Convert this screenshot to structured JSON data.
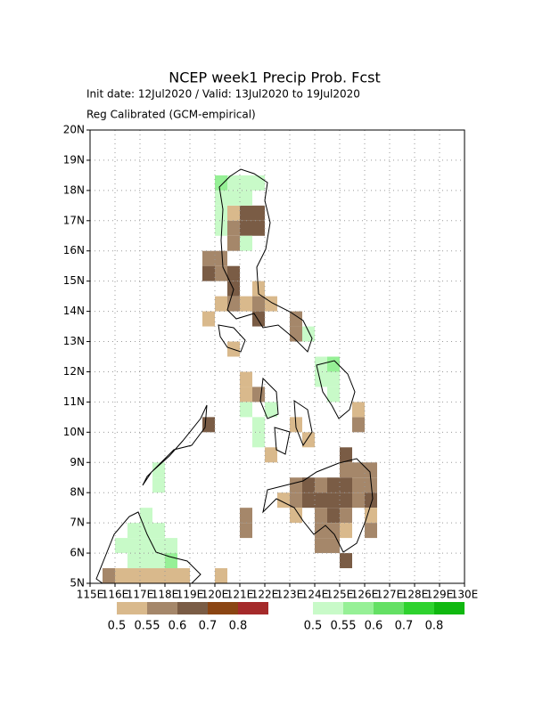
{
  "chart_data": {
    "type": "map",
    "title": "NCEP week1 Precip Prob. Fcst",
    "subtitle": "Init date: 12Jul2020 / Valid: 13Jul2020 to 19Jul2020",
    "note": "Reg Calibrated (GCM-empirical)",
    "xlim": [
      115,
      130
    ],
    "ylim": [
      5,
      20
    ],
    "xticks": [
      {
        "value": 115,
        "label": "115E"
      },
      {
        "value": 116,
        "label": "116E"
      },
      {
        "value": 117,
        "label": "117E"
      },
      {
        "value": 118,
        "label": "118E"
      },
      {
        "value": 119,
        "label": "119E"
      },
      {
        "value": 120,
        "label": "120E"
      },
      {
        "value": 121,
        "label": "121E"
      },
      {
        "value": 122,
        "label": "122E"
      },
      {
        "value": 123,
        "label": "123E"
      },
      {
        "value": 124,
        "label": "124E"
      },
      {
        "value": 125,
        "label": "125E"
      },
      {
        "value": 126,
        "label": "126E"
      },
      {
        "value": 127,
        "label": "127E"
      },
      {
        "value": 128,
        "label": "128E"
      },
      {
        "value": 129,
        "label": "129E"
      },
      {
        "value": 130,
        "label": "130E"
      }
    ],
    "yticks": [
      {
        "value": 5,
        "label": "5N"
      },
      {
        "value": 6,
        "label": "6N"
      },
      {
        "value": 7,
        "label": "7N"
      },
      {
        "value": 8,
        "label": "8N"
      },
      {
        "value": 9,
        "label": "9N"
      },
      {
        "value": 10,
        "label": "10N"
      },
      {
        "value": 11,
        "label": "11N"
      },
      {
        "value": 12,
        "label": "12N"
      },
      {
        "value": 13,
        "label": "13N"
      },
      {
        "value": 14,
        "label": "14N"
      },
      {
        "value": 15,
        "label": "15N"
      },
      {
        "value": 16,
        "label": "16N"
      },
      {
        "value": 17,
        "label": "17N"
      },
      {
        "value": 18,
        "label": "18N"
      },
      {
        "value": 19,
        "label": "19N"
      },
      {
        "value": 20,
        "label": "20N"
      }
    ],
    "grid": true,
    "brown_scale": {
      "levels": [
        0.5,
        0.55,
        0.6,
        0.7,
        0.8
      ],
      "colors": [
        "#d9b98c",
        "#a5876a",
        "#7a5c45",
        "#8b4513",
        "#a52a2a"
      ]
    },
    "green_scale": {
      "levels": [
        0.5,
        0.55,
        0.6,
        0.7,
        0.8
      ],
      "colors": [
        "#c8fac8",
        "#96f096",
        "#64e064",
        "#2ed22e",
        "#10b810"
      ]
    },
    "brown_cells": [
      [
        120.5,
        17.0,
        0.5
      ],
      [
        121.0,
        17.0,
        0.6
      ],
      [
        121.5,
        17.0,
        0.6
      ],
      [
        121.0,
        16.5,
        0.6
      ],
      [
        121.5,
        16.5,
        0.6
      ],
      [
        120.5,
        16.5,
        0.55
      ],
      [
        120.5,
        16.0,
        0.55
      ],
      [
        119.5,
        15.5,
        0.55
      ],
      [
        120.0,
        15.5,
        0.55
      ],
      [
        119.5,
        15.0,
        0.6
      ],
      [
        120.0,
        15.0,
        0.55
      ],
      [
        120.5,
        15.0,
        0.6
      ],
      [
        120.5,
        14.5,
        0.6
      ],
      [
        121.5,
        14.5,
        0.5
      ],
      [
        120.0,
        14.0,
        0.5
      ],
      [
        120.5,
        14.0,
        0.55
      ],
      [
        121.0,
        14.0,
        0.5
      ],
      [
        121.5,
        14.0,
        0.55
      ],
      [
        122.0,
        14.0,
        0.5
      ],
      [
        119.5,
        13.5,
        0.5
      ],
      [
        121.5,
        13.5,
        0.6
      ],
      [
        123.0,
        13.5,
        0.55
      ],
      [
        123.0,
        13.0,
        0.55
      ],
      [
        120.5,
        12.5,
        0.5
      ],
      [
        121.0,
        11.5,
        0.5
      ],
      [
        121.0,
        11.0,
        0.5
      ],
      [
        121.5,
        11.0,
        0.55
      ],
      [
        119.5,
        10.0,
        0.6
      ],
      [
        125.5,
        10.0,
        0.55
      ],
      [
        125.5,
        10.5,
        0.5
      ],
      [
        123.0,
        10.0,
        0.5
      ],
      [
        123.5,
        9.5,
        0.5
      ],
      [
        122.0,
        9.0,
        0.5
      ],
      [
        125.0,
        9.0,
        0.6
      ],
      [
        125.0,
        8.5,
        0.55
      ],
      [
        125.5,
        8.5,
        0.55
      ],
      [
        126.0,
        8.5,
        0.55
      ],
      [
        123.0,
        8.0,
        0.55
      ],
      [
        123.5,
        8.0,
        0.6
      ],
      [
        124.0,
        8.0,
        0.55
      ],
      [
        124.5,
        8.0,
        0.6
      ],
      [
        125.0,
        8.0,
        0.6
      ],
      [
        125.5,
        8.0,
        0.55
      ],
      [
        126.0,
        8.0,
        0.55
      ],
      [
        122.5,
        7.5,
        0.5
      ],
      [
        123.0,
        7.5,
        0.55
      ],
      [
        123.5,
        7.5,
        0.6
      ],
      [
        124.0,
        7.5,
        0.6
      ],
      [
        124.5,
        7.5,
        0.6
      ],
      [
        125.0,
        7.5,
        0.6
      ],
      [
        125.5,
        7.5,
        0.55
      ],
      [
        126.0,
        7.5,
        0.6
      ],
      [
        121.0,
        7.0,
        0.55
      ],
      [
        123.0,
        7.0,
        0.5
      ],
      [
        124.0,
        7.0,
        0.55
      ],
      [
        124.5,
        7.0,
        0.6
      ],
      [
        125.0,
        7.0,
        0.55
      ],
      [
        126.0,
        7.0,
        0.5
      ],
      [
        121.0,
        6.5,
        0.55
      ],
      [
        124.0,
        6.5,
        0.55
      ],
      [
        124.5,
        6.5,
        0.55
      ],
      [
        125.0,
        6.5,
        0.5
      ],
      [
        126.0,
        6.5,
        0.55
      ],
      [
        124.0,
        6.0,
        0.55
      ],
      [
        124.5,
        6.0,
        0.55
      ],
      [
        125.0,
        5.5,
        0.6
      ],
      [
        115.5,
        5.0,
        0.55
      ],
      [
        116.0,
        5.0,
        0.5
      ],
      [
        116.5,
        5.0,
        0.5
      ],
      [
        117.0,
        5.0,
        0.5
      ],
      [
        117.5,
        5.0,
        0.5
      ],
      [
        118.0,
        5.0,
        0.5
      ],
      [
        118.5,
        5.0,
        0.5
      ],
      [
        120.0,
        5.0,
        0.5
      ]
    ],
    "green_cells": [
      [
        120.0,
        18.0,
        0.55
      ],
      [
        120.5,
        18.0,
        0.5
      ],
      [
        121.0,
        18.0,
        0.5
      ],
      [
        121.5,
        18.0,
        0.5
      ],
      [
        120.0,
        17.5,
        0.5
      ],
      [
        120.5,
        17.5,
        0.5
      ],
      [
        121.0,
        17.5,
        0.5
      ],
      [
        120.0,
        17.0,
        0.5
      ],
      [
        120.0,
        16.5,
        0.5
      ],
      [
        121.0,
        16.0,
        0.5
      ],
      [
        123.5,
        13.0,
        0.5
      ],
      [
        121.0,
        10.5,
        0.5
      ],
      [
        121.5,
        10.0,
        0.5
      ],
      [
        122.0,
        10.5,
        0.5
      ],
      [
        121.5,
        9.5,
        0.5
      ],
      [
        124.0,
        12.0,
        0.5
      ],
      [
        124.5,
        12.0,
        0.55
      ],
      [
        124.0,
        11.5,
        0.5
      ],
      [
        124.5,
        11.5,
        0.5
      ],
      [
        124.5,
        11.0,
        0.5
      ],
      [
        117.5,
        8.5,
        0.5
      ],
      [
        117.5,
        8.0,
        0.5
      ],
      [
        117.0,
        7.0,
        0.5
      ],
      [
        117.0,
        6.5,
        0.5
      ],
      [
        117.5,
        6.5,
        0.5
      ],
      [
        116.5,
        6.5,
        0.5
      ],
      [
        116.0,
        6.0,
        0.5
      ],
      [
        116.5,
        6.0,
        0.5
      ],
      [
        117.0,
        6.0,
        0.5
      ],
      [
        117.5,
        6.0,
        0.5
      ],
      [
        118.0,
        5.5,
        0.55
      ],
      [
        118.0,
        6.0,
        0.5
      ],
      [
        117.0,
        5.5,
        0.5
      ],
      [
        117.5,
        5.5,
        0.5
      ],
      [
        116.5,
        5.5,
        0.5
      ]
    ]
  }
}
